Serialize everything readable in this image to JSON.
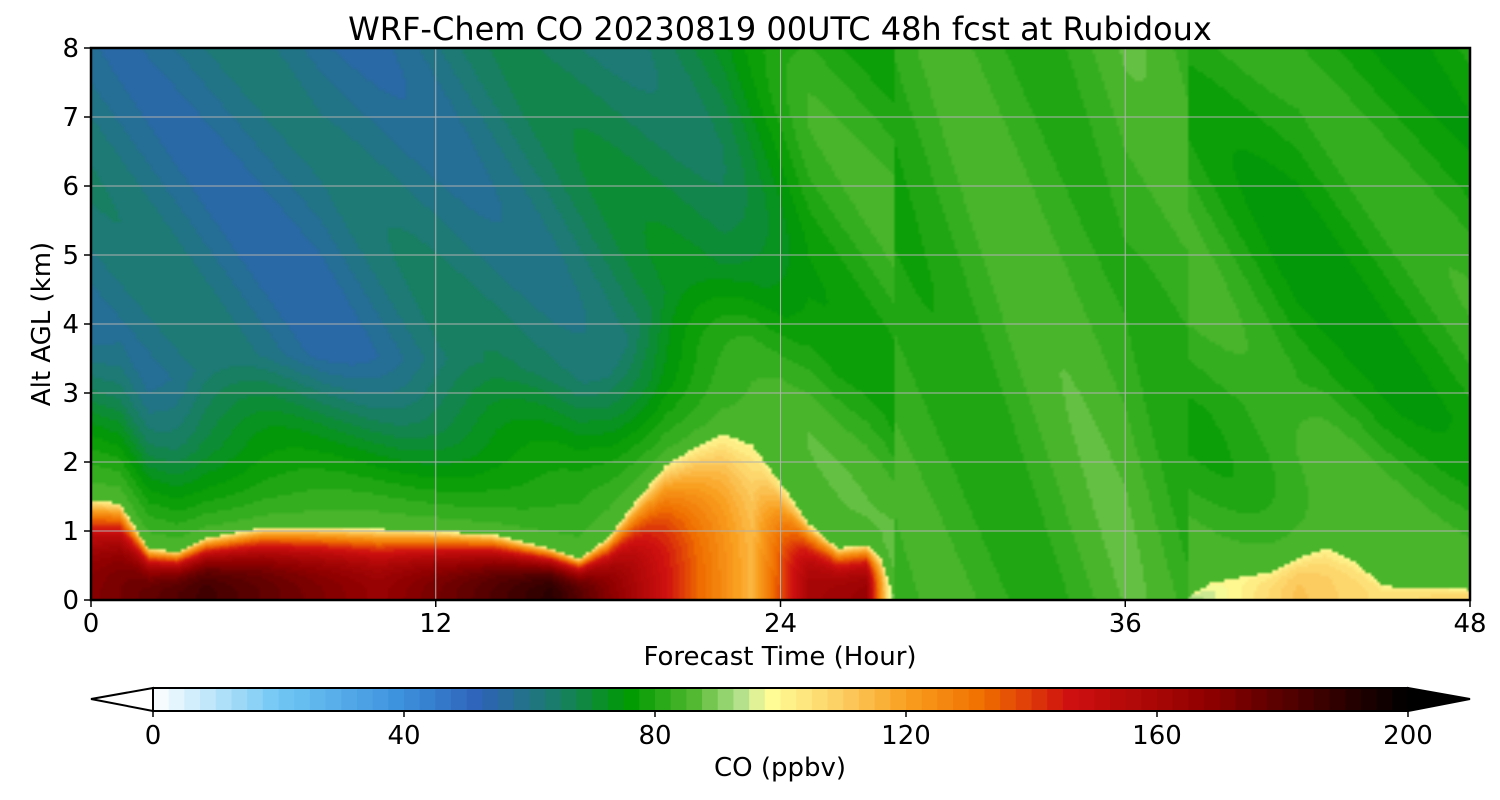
{
  "chart_data": {
    "type": "heatmap",
    "title": "WRF-Chem CO  20230819 00UTC 48h fcst at Rubidoux",
    "xlabel": "Forecast Time (Hour)",
    "ylabel": "Alt AGL (km)",
    "xlim": [
      0,
      48
    ],
    "ylim": [
      0,
      8
    ],
    "xticks": [
      "0",
      "12",
      "24",
      "36",
      "48"
    ],
    "yticks": [
      "0",
      "1",
      "2",
      "3",
      "4",
      "5",
      "6",
      "7",
      "8"
    ],
    "grid": true,
    "colorbar": {
      "label": "CO  (ppbv)",
      "min": 0,
      "max": 200,
      "extend": "both",
      "orientation": "horizontal",
      "ticks": [
        "0",
        "40",
        "80",
        "120",
        "160",
        "200"
      ],
      "colors": [
        {
          "v": 0,
          "c": "#ffffff"
        },
        {
          "v": 20,
          "c": "#70c8f4"
        },
        {
          "v": 40,
          "c": "#3b8fdc"
        },
        {
          "v": 52,
          "c": "#2e62b8"
        },
        {
          "v": 64,
          "c": "#1a7d6b"
        },
        {
          "v": 76,
          "c": "#009a00"
        },
        {
          "v": 86,
          "c": "#50b830"
        },
        {
          "v": 94,
          "c": "#b8e290"
        },
        {
          "v": 98,
          "c": "#ffff99"
        },
        {
          "v": 110,
          "c": "#fccc60"
        },
        {
          "v": 120,
          "c": "#f9a020"
        },
        {
          "v": 132,
          "c": "#f07000"
        },
        {
          "v": 146,
          "c": "#d01010"
        },
        {
          "v": 168,
          "c": "#900000"
        },
        {
          "v": 185,
          "c": "#400000"
        },
        {
          "v": 200,
          "c": "#000000"
        }
      ]
    },
    "boundary_layer_top_km": [
      {
        "t": 0,
        "z": 1.45
      },
      {
        "t": 1,
        "z": 1.4
      },
      {
        "t": 2,
        "z": 0.75
      },
      {
        "t": 3,
        "z": 0.7
      },
      {
        "t": 4,
        "z": 0.9
      },
      {
        "t": 6,
        "z": 1.05
      },
      {
        "t": 8,
        "z": 1.05
      },
      {
        "t": 12,
        "z": 1.0
      },
      {
        "t": 14,
        "z": 0.95
      },
      {
        "t": 16,
        "z": 0.75
      },
      {
        "t": 17,
        "z": 0.6
      },
      {
        "t": 18,
        "z": 0.9
      },
      {
        "t": 19,
        "z": 1.45
      },
      {
        "t": 20,
        "z": 1.95
      },
      {
        "t": 21,
        "z": 2.2
      },
      {
        "t": 22,
        "z": 2.4
      },
      {
        "t": 23,
        "z": 2.25
      },
      {
        "t": 24,
        "z": 1.7
      },
      {
        "t": 25,
        "z": 1.1
      },
      {
        "t": 26,
        "z": 0.75
      },
      {
        "t": 27,
        "z": 0.8
      },
      {
        "t": 27.5,
        "z": 0.6
      },
      {
        "t": 28,
        "z": 0.0
      },
      {
        "t": 38,
        "z": 0.0
      },
      {
        "t": 39,
        "z": 0.25
      },
      {
        "t": 41,
        "z": 0.4
      },
      {
        "t": 42,
        "z": 0.6
      },
      {
        "t": 43,
        "z": 0.75
      },
      {
        "t": 44,
        "z": 0.55
      },
      {
        "t": 45,
        "z": 0.2
      },
      {
        "t": 48,
        "z": 0.15
      }
    ],
    "surface_co_ppbv": [
      {
        "t": 0,
        "v": 170
      },
      {
        "t": 4,
        "v": 185
      },
      {
        "t": 10,
        "v": 165
      },
      {
        "t": 16,
        "v": 190
      },
      {
        "t": 18,
        "v": 170
      },
      {
        "t": 21,
        "v": 135
      },
      {
        "t": 23,
        "v": 115
      },
      {
        "t": 25,
        "v": 160
      },
      {
        "t": 27,
        "v": 165
      },
      {
        "t": 28,
        "v": 80
      },
      {
        "t": 38,
        "v": 90
      },
      {
        "t": 42,
        "v": 112
      },
      {
        "t": 45,
        "v": 105
      },
      {
        "t": 48,
        "v": 108
      }
    ],
    "free_troposphere_co_ppbv": [
      {
        "t": 0,
        "v": 60
      },
      {
        "t": 8,
        "v": 58
      },
      {
        "t": 16,
        "v": 64
      },
      {
        "t": 22,
        "v": 70
      },
      {
        "t": 25,
        "v": 80
      },
      {
        "t": 30,
        "v": 82
      },
      {
        "t": 36,
        "v": 84
      },
      {
        "t": 42,
        "v": 78
      },
      {
        "t": 48,
        "v": 80
      }
    ]
  }
}
